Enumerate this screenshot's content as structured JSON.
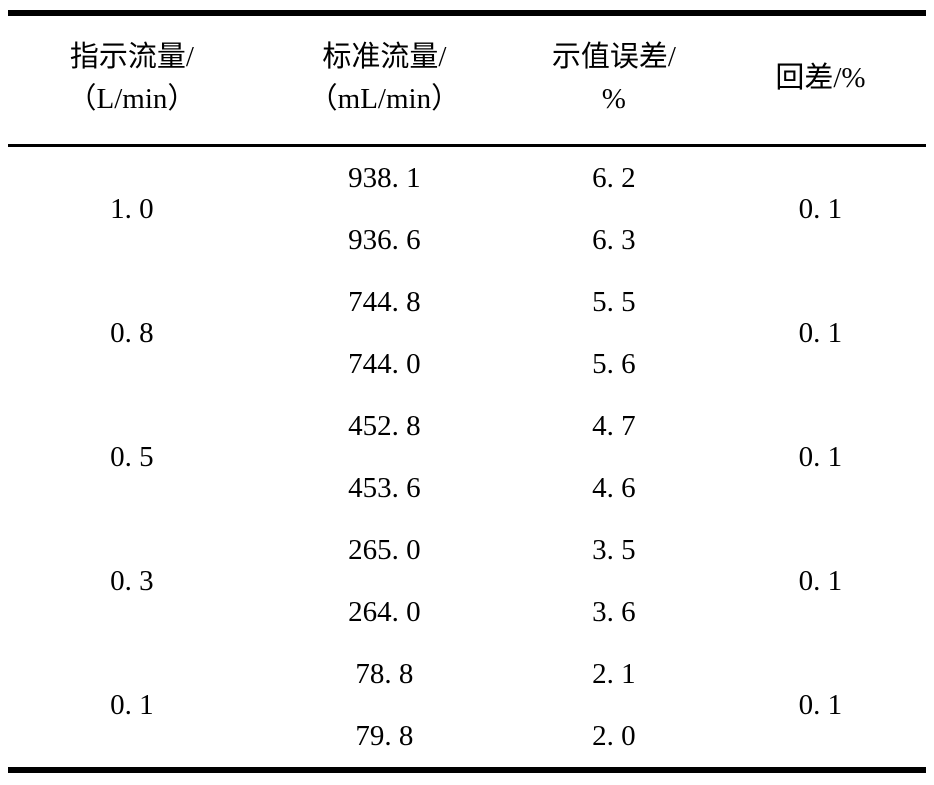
{
  "table": {
    "headers": [
      {
        "line1": "指示流量/",
        "line2": "（L/min）"
      },
      {
        "line1": "标准流量/",
        "line2": "（mL/min）"
      },
      {
        "line1": "示值误差/",
        "line2": "%"
      },
      {
        "line1": "回差/%",
        "line2": ""
      }
    ],
    "groups": [
      {
        "indicated": "1. 0",
        "readings": [
          {
            "standard": "938. 1",
            "error": "6. 2"
          },
          {
            "standard": "936. 6",
            "error": "6. 3"
          }
        ],
        "hysteresis": "0. 1"
      },
      {
        "indicated": "0. 8",
        "readings": [
          {
            "standard": "744. 8",
            "error": "5. 5"
          },
          {
            "standard": "744. 0",
            "error": "5. 6"
          }
        ],
        "hysteresis": "0. 1"
      },
      {
        "indicated": "0. 5",
        "readings": [
          {
            "standard": "452. 8",
            "error": "4. 7"
          },
          {
            "standard": "453. 6",
            "error": "4. 6"
          }
        ],
        "hysteresis": "0. 1"
      },
      {
        "indicated": "0. 3",
        "readings": [
          {
            "standard": "265. 0",
            "error": "3. 5"
          },
          {
            "standard": "264. 0",
            "error": "3. 6"
          }
        ],
        "hysteresis": "0. 1"
      },
      {
        "indicated": "0. 1",
        "readings": [
          {
            "standard": "78. 8",
            "error": "2. 1"
          },
          {
            "standard": "79. 8",
            "error": "2. 0"
          }
        ],
        "hysteresis": "0. 1"
      }
    ]
  }
}
